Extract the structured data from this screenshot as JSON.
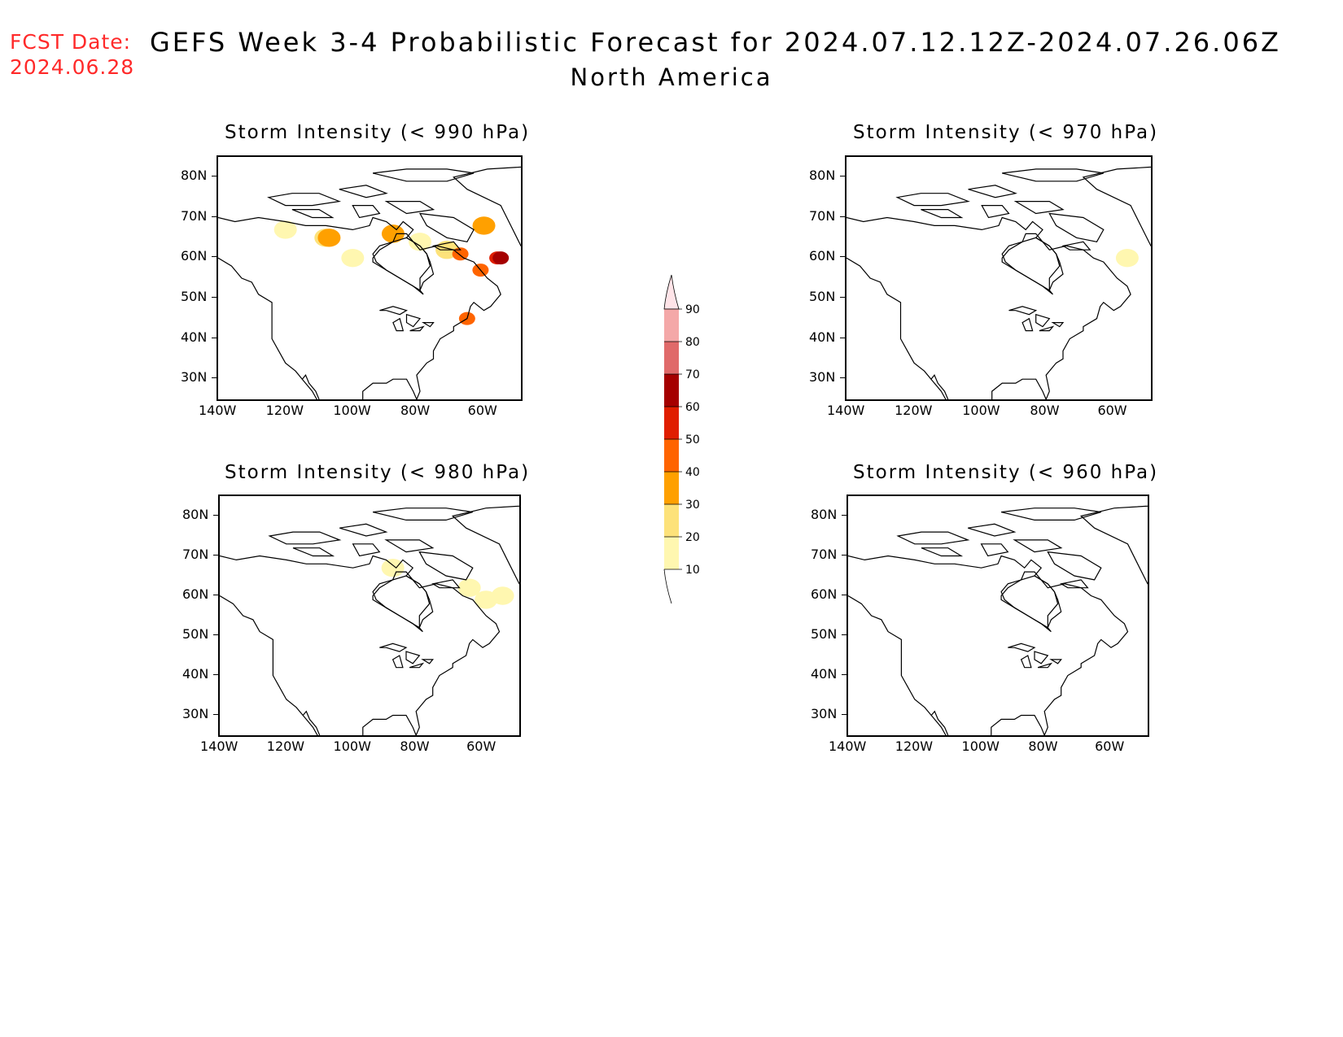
{
  "header": {
    "fcst_line1": "FCST Date:",
    "fcst_line2": "2024.06.28",
    "title": "GEFS Week 3-4 Probabilistic Forecast for 2024.07.12.12Z-2024.07.26.06Z",
    "subtitle": "North America"
  },
  "panels": [
    {
      "title": "Storm Intensity (< 990 hPa)"
    },
    {
      "title": "Storm Intensity (< 970 hPa)"
    },
    {
      "title": "Storm Intensity (< 980 hPa)"
    },
    {
      "title": "Storm Intensity (< 960 hPa)"
    }
  ],
  "axes": {
    "lat_labels": [
      "80N",
      "70N",
      "60N",
      "50N",
      "40N",
      "30N"
    ],
    "lon_labels": [
      "140W",
      "120W",
      "100W",
      "80W",
      "60W"
    ]
  },
  "colorbar": {
    "levels": [
      "10",
      "20",
      "30",
      "40",
      "50",
      "60",
      "70",
      "80",
      "90"
    ],
    "colors": [
      "#fff7b0",
      "#fde27a",
      "#ffa000",
      "#ff6400",
      "#e01e00",
      "#a50000",
      "#e06a6a",
      "#f4a8a8",
      "#ffe4e8"
    ]
  },
  "fields": {
    "p990": [
      {
        "lon": -120,
        "lat": 67,
        "level": 10
      },
      {
        "lon": -108,
        "lat": 65,
        "level": 20
      },
      {
        "lon": -107,
        "lat": 65,
        "level": 30
      },
      {
        "lon": -100,
        "lat": 60,
        "level": 10
      },
      {
        "lon": -88,
        "lat": 66,
        "level": 30
      },
      {
        "lon": -80,
        "lat": 64,
        "level": 10
      },
      {
        "lon": -72,
        "lat": 62,
        "level": 20
      },
      {
        "lon": -68,
        "lat": 61,
        "level": 40
      },
      {
        "lon": -62,
        "lat": 57,
        "level": 40
      },
      {
        "lon": -57,
        "lat": 60,
        "level": 50
      },
      {
        "lon": -56,
        "lat": 60,
        "level": 60
      },
      {
        "lon": -66,
        "lat": 45,
        "level": 40
      },
      {
        "lon": -61,
        "lat": 68,
        "level": 30
      }
    ],
    "p970": [
      {
        "lon": -57,
        "lat": 60,
        "level": 10
      }
    ],
    "p980": [
      {
        "lon": -88,
        "lat": 67,
        "level": 10
      },
      {
        "lon": -65,
        "lat": 62,
        "level": 10
      },
      {
        "lon": -60,
        "lat": 59,
        "level": 10
      },
      {
        "lon": -55,
        "lat": 60,
        "level": 10
      }
    ],
    "p960": []
  }
}
